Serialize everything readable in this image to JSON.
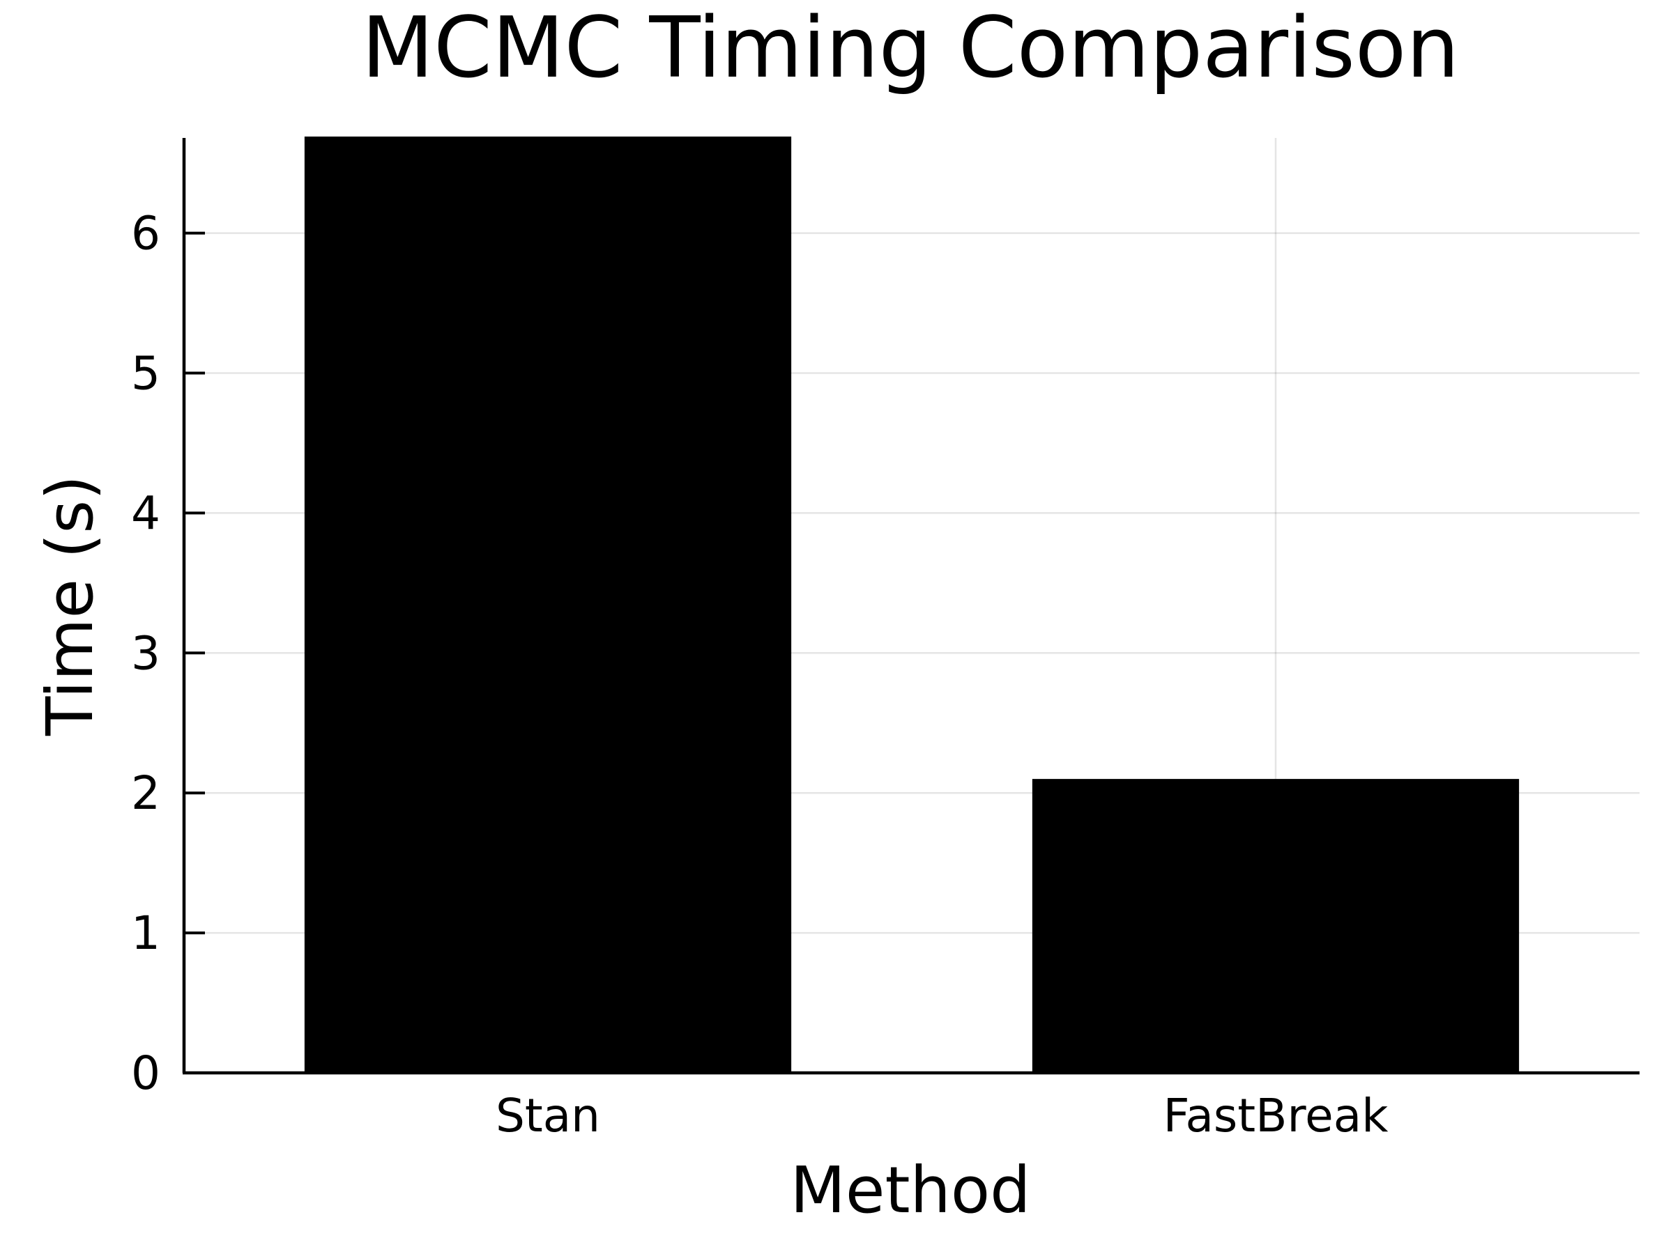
{
  "chart_data": {
    "type": "bar",
    "title": "MCMC Timing Comparison",
    "xlabel": "Method",
    "ylabel": "Time (s)",
    "categories": [
      "Stan",
      "FastBreak"
    ],
    "values": [
      6.68,
      2.09
    ],
    "ylim": [
      0,
      6.68
    ],
    "yticks": [
      0,
      1,
      2,
      3,
      4,
      5,
      6
    ],
    "grid": true,
    "legend": "none",
    "bar_color": "#000000"
  }
}
